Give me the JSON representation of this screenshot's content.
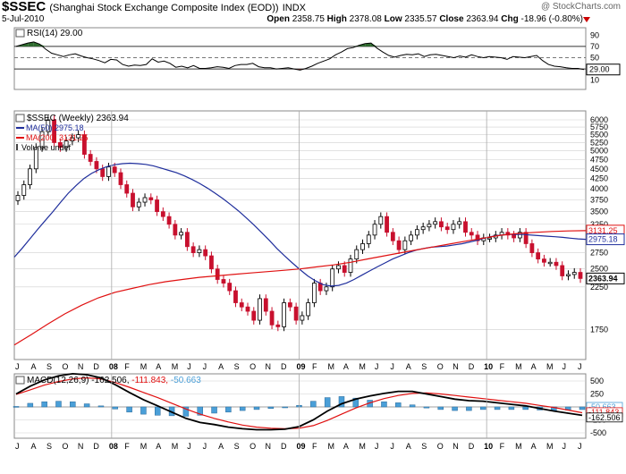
{
  "header": {
    "symbol": "$SSEC",
    "name": "(Shanghai Stock Exchange Composite Index (EOD))",
    "exchange": "INDX",
    "date": "5-Jul-2010",
    "watermark": "@ StockCharts.com",
    "open_label": "Open",
    "open": "2358.75",
    "high_label": "High",
    "high": "2378.08",
    "low_label": "Low",
    "low": "2335.57",
    "close_label": "Close",
    "close": "2363.94",
    "chg_label": "Chg",
    "chg": "-18.96 (-0.80%)",
    "chg_direction": "down"
  },
  "colors": {
    "up": "#000000",
    "down": "#c8102e",
    "ma50": "#1f2e9c",
    "ma200": "#e01010",
    "rsi_over": "#2e6b2e",
    "rsi_under": "#7a2d2d",
    "hist": "#4a9fd8",
    "grid": "#cfcfcf"
  },
  "chart_data": [
    {
      "type": "line",
      "panel": "rsi",
      "legend": "RSI(14) 29.00",
      "current_value": "29.00",
      "ylim": [
        0,
        100
      ],
      "y_ticks": [
        "90",
        "70",
        "50",
        "30",
        "10"
      ],
      "levels": [
        70,
        50,
        30
      ],
      "values": [
        70,
        73,
        76,
        78,
        74,
        65,
        58,
        55,
        52,
        55,
        57,
        53,
        50,
        48,
        45,
        41,
        47,
        46,
        38,
        35,
        37,
        36,
        38,
        48,
        42,
        44,
        40,
        33,
        35,
        32,
        36,
        31,
        31,
        32,
        34,
        33,
        31,
        36,
        38,
        38,
        40,
        34,
        32,
        32,
        30,
        31,
        32,
        30,
        28,
        31,
        35,
        40,
        44,
        48,
        55,
        60,
        66,
        68,
        72,
        75,
        76,
        67,
        60,
        54,
        51,
        54,
        56,
        55,
        57,
        52,
        55,
        56,
        54,
        52,
        50,
        53,
        51,
        55,
        52,
        50,
        52,
        51,
        50,
        47,
        52,
        51,
        50,
        52,
        54,
        45,
        38,
        35,
        34,
        32,
        31,
        31,
        29
      ]
    },
    {
      "type": "candlestick",
      "panel": "price",
      "legend": "$SSEC (Weekly) 2363.94",
      "scale": "log",
      "ylim": [
        1500,
        6000
      ],
      "y_ticks": [
        "6000",
        "5750",
        "5500",
        "5250",
        "5000",
        "4750",
        "4500",
        "4250",
        "4000",
        "3750",
        "3500",
        "3250",
        "2750",
        "2500",
        "2250",
        "1750"
      ],
      "x_ticks": [
        "J",
        "A",
        "S",
        "O",
        "N",
        "D",
        "08",
        "F",
        "M",
        "A",
        "M",
        "J",
        "J",
        "A",
        "S",
        "O",
        "N",
        "D",
        "09",
        "F",
        "M",
        "A",
        "M",
        "J",
        "J",
        "A",
        "S",
        "O",
        "N",
        "D",
        "10",
        "F",
        "M",
        "A",
        "M",
        "J",
        "J"
      ],
      "close": [
        3850,
        4100,
        4500,
        5100,
        5600,
        6000,
        5250,
        5100,
        5300,
        5400,
        5500,
        4900,
        4700,
        4500,
        4300,
        4550,
        4400,
        4100,
        3900,
        3600,
        3700,
        3800,
        3750,
        3500,
        3400,
        3250,
        3050,
        3100,
        2850,
        2750,
        2800,
        2700,
        2500,
        2350,
        2300,
        2200,
        2050,
        2000,
        1950,
        1850,
        2100,
        1950,
        1800,
        1780,
        2050,
        2000,
        1850,
        1900,
        2050,
        2300,
        2200,
        2250,
        2500,
        2550,
        2450,
        2650,
        2800,
        2900,
        3050,
        3250,
        3400,
        3100,
        2950,
        2800,
        2950,
        3050,
        3150,
        3200,
        3250,
        3300,
        3200,
        3150,
        3250,
        3300,
        3100,
        3050,
        2950,
        3000,
        3000,
        3050,
        3100,
        3050,
        3000,
        3100,
        2900,
        2750,
        2650,
        2600,
        2600,
        2550,
        2400,
        2420,
        2450,
        2364
      ],
      "series": [
        {
          "name": "MA(50)",
          "label": "MA(50) 2975.18",
          "current_value": "2975.18",
          "values": [
            2680,
            2820,
            2980,
            3150,
            3320,
            3500,
            3700,
            3900,
            4080,
            4250,
            4380,
            4480,
            4560,
            4610,
            4640,
            4650,
            4640,
            4620,
            4580,
            4520,
            4460,
            4400,
            4320,
            4230,
            4130,
            4020,
            3900,
            3780,
            3650,
            3520,
            3380,
            3240,
            3100,
            2960,
            2820,
            2700,
            2590,
            2490,
            2400,
            2330,
            2280,
            2260,
            2270,
            2300,
            2350,
            2410,
            2470,
            2530,
            2590,
            2650,
            2700,
            2750,
            2790,
            2820,
            2840,
            2850,
            2860,
            2880,
            2900,
            2930,
            2960,
            3000,
            3030,
            3050,
            3060,
            3060,
            3060,
            3050,
            3040,
            3030,
            3020,
            3010,
            2995,
            2982,
            2975
          ]
        },
        {
          "name": "MA(200)",
          "label": "MA(200) 3131.25",
          "current_value": "3131.25",
          "values": [
            1600,
            1700,
            1810,
            1920,
            2020,
            2110,
            2180,
            2230,
            2280,
            2320,
            2350,
            2380,
            2400,
            2420,
            2440,
            2460,
            2480,
            2500,
            2530,
            2560,
            2600,
            2650,
            2700,
            2750,
            2800,
            2850,
            2900,
            2950,
            3000,
            3050,
            3080,
            3100,
            3115,
            3125,
            3131
          ]
        }
      ],
      "annotations": [
        "Volume undef"
      ]
    },
    {
      "type": "line",
      "panel": "macd",
      "legend_main": "MACD(12,26,9)",
      "legend_macd": "-162.506",
      "legend_signal": "-111.843",
      "legend_hist": "-50.663",
      "ylim": [
        -500,
        500
      ],
      "y_ticks": [
        "500",
        "250",
        "0",
        "-250",
        "-500"
      ],
      "right_labels": [
        "-50.663",
        "-111.843",
        "-162.506"
      ],
      "series": [
        {
          "name": "MACD",
          "values": [
            250,
            400,
            520,
            600,
            640,
            620,
            560,
            430,
            280,
            140,
            20,
            -100,
            -220,
            -300,
            -340,
            -390,
            -420,
            -440,
            -440,
            -430,
            -380,
            -250,
            -80,
            60,
            150,
            210,
            260,
            300,
            300,
            250,
            200,
            150,
            120,
            110,
            80,
            50,
            20,
            -30,
            -80,
            -120,
            -162
          ]
        },
        {
          "name": "Signal",
          "values": [
            240,
            330,
            420,
            490,
            540,
            560,
            540,
            470,
            380,
            280,
            180,
            70,
            -40,
            -140,
            -220,
            -290,
            -350,
            -390,
            -410,
            -420,
            -410,
            -360,
            -260,
            -140,
            -20,
            80,
            160,
            220,
            260,
            270,
            250,
            220,
            190,
            160,
            130,
            100,
            70,
            30,
            -10,
            -60,
            -112
          ]
        },
        {
          "name": "Histogram",
          "values": [
            10,
            70,
            100,
            110,
            100,
            60,
            20,
            -40,
            -100,
            -140,
            -160,
            -170,
            -180,
            -160,
            -120,
            -100,
            -70,
            -50,
            -30,
            -10,
            30,
            110,
            180,
            200,
            170,
            130,
            100,
            80,
            40,
            -20,
            -50,
            -70,
            -70,
            -50,
            -50,
            -50,
            -50,
            -60,
            -70,
            -60,
            -51
          ]
        }
      ],
      "x_ticks": [
        "J",
        "A",
        "S",
        "O",
        "N",
        "D",
        "08",
        "F",
        "M",
        "A",
        "M",
        "J",
        "J",
        "A",
        "S",
        "O",
        "N",
        "D",
        "09",
        "F",
        "M",
        "A",
        "M",
        "J",
        "J",
        "A",
        "S",
        "O",
        "N",
        "D",
        "10",
        "F",
        "M",
        "A",
        "M",
        "J",
        "J"
      ]
    }
  ]
}
